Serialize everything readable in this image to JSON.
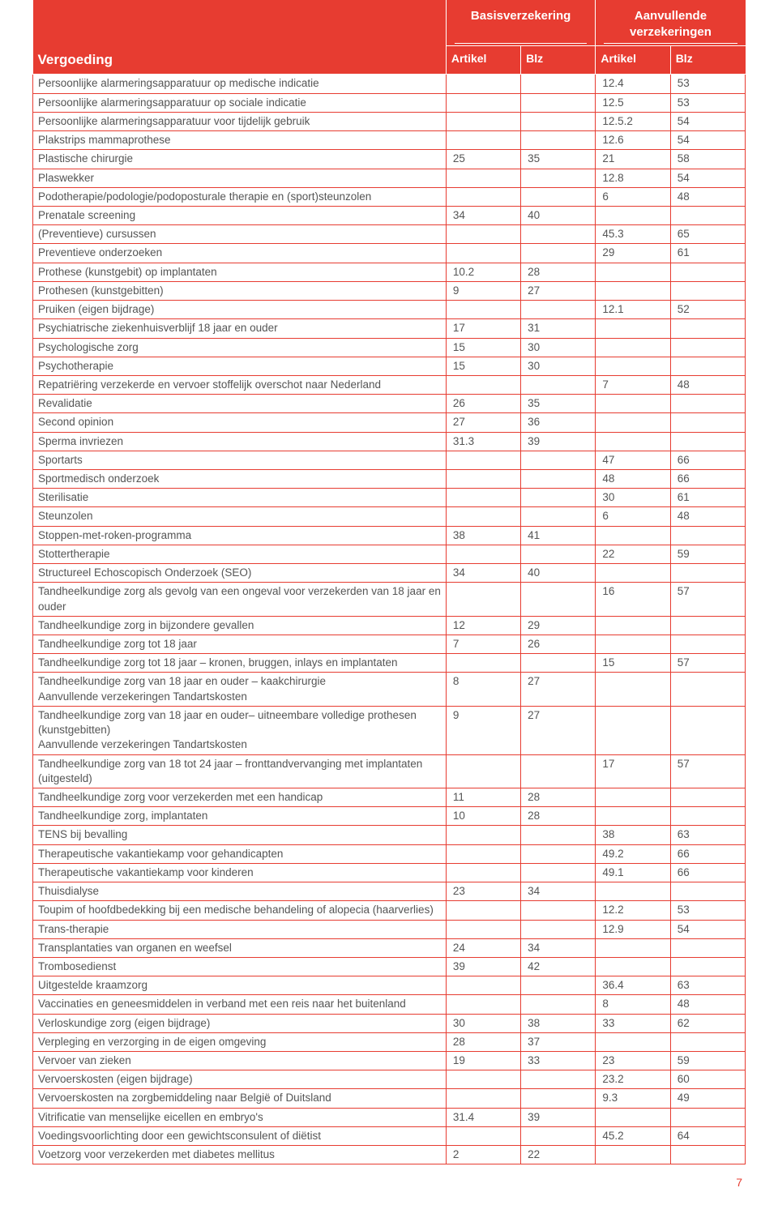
{
  "header": {
    "group1": "Basisverzekering",
    "group2": "Aanvullende verzekeringen",
    "vergoeding": "Vergoeding",
    "artikel": "Artikel",
    "blz": "Blz"
  },
  "page_number": "7",
  "colors": {
    "accent": "#e73c31",
    "text": "#555555",
    "header_text": "#ffffff",
    "background": "#ffffff"
  },
  "rows": [
    {
      "desc": "Persoonlijke alarmeringsapparatuur op medische indicatie",
      "a1": "",
      "b1": "",
      "a2": "12.4",
      "b2": "53"
    },
    {
      "desc": "Persoonlijke alarmeringsapparatuur op sociale indicatie",
      "a1": "",
      "b1": "",
      "a2": "12.5",
      "b2": "53"
    },
    {
      "desc": "Persoonlijke alarmeringsapparatuur voor tijdelijk gebruik",
      "a1": "",
      "b1": "",
      "a2": "12.5.2",
      "b2": "54"
    },
    {
      "desc": "Plakstrips mammaprothese",
      "a1": "",
      "b1": "",
      "a2": "12.6",
      "b2": "54"
    },
    {
      "desc": "Plastische chirurgie",
      "a1": "25",
      "b1": "35",
      "a2": "21",
      "b2": "58"
    },
    {
      "desc": "Plaswekker",
      "a1": "",
      "b1": "",
      "a2": "12.8",
      "b2": "54"
    },
    {
      "desc": "Podotherapie/podologie/podoposturale therapie en (sport)steunzolen",
      "a1": "",
      "b1": "",
      "a2": "6",
      "b2": "48"
    },
    {
      "desc": "Prenatale screening",
      "a1": "34",
      "b1": "40",
      "a2": "",
      "b2": ""
    },
    {
      "desc": "(Preventieve) cursussen",
      "a1": "",
      "b1": "",
      "a2": "45.3",
      "b2": "65"
    },
    {
      "desc": "Preventieve onderzoeken",
      "a1": "",
      "b1": "",
      "a2": "29",
      "b2": "61"
    },
    {
      "desc": "Prothese (kunstgebit) op implantaten",
      "a1": "10.2",
      "b1": "28",
      "a2": "",
      "b2": ""
    },
    {
      "desc": "Prothesen (kunstgebitten)",
      "a1": "9",
      "b1": "27",
      "a2": "",
      "b2": ""
    },
    {
      "desc": "Pruiken (eigen bijdrage)",
      "a1": "",
      "b1": "",
      "a2": "12.1",
      "b2": "52"
    },
    {
      "desc": "Psychiatrische ziekenhuisverblijf 18 jaar en ouder",
      "a1": "17",
      "b1": "31",
      "a2": "",
      "b2": ""
    },
    {
      "desc": "Psychologische zorg",
      "a1": "15",
      "b1": "30",
      "a2": "",
      "b2": ""
    },
    {
      "desc": "Psychotherapie",
      "a1": "15",
      "b1": "30",
      "a2": "",
      "b2": ""
    },
    {
      "desc": "Repatriëring verzekerde en vervoer stoffelijk overschot naar Nederland",
      "a1": "",
      "b1": "",
      "a2": "7",
      "b2": "48"
    },
    {
      "desc": "Revalidatie",
      "a1": "26",
      "b1": "35",
      "a2": "",
      "b2": ""
    },
    {
      "desc": "Second opinion",
      "a1": "27",
      "b1": "36",
      "a2": "",
      "b2": ""
    },
    {
      "desc": "Sperma invriezen",
      "a1": "31.3",
      "b1": "39",
      "a2": "",
      "b2": ""
    },
    {
      "desc": "Sportarts",
      "a1": "",
      "b1": "",
      "a2": "47",
      "b2": "66"
    },
    {
      "desc": "Sportmedisch onderzoek",
      "a1": "",
      "b1": "",
      "a2": "48",
      "b2": "66"
    },
    {
      "desc": "Sterilisatie",
      "a1": "",
      "b1": "",
      "a2": "30",
      "b2": "61"
    },
    {
      "desc": "Steunzolen",
      "a1": "",
      "b1": "",
      "a2": "6",
      "b2": "48"
    },
    {
      "desc": "Stoppen-met-roken-programma",
      "a1": "38",
      "b1": "41",
      "a2": "",
      "b2": ""
    },
    {
      "desc": "Stottertherapie",
      "a1": "",
      "b1": "",
      "a2": "22",
      "b2": "59"
    },
    {
      "desc": "Structureel Echoscopisch Onderzoek (SEO)",
      "a1": "34",
      "b1": "40",
      "a2": "",
      "b2": ""
    },
    {
      "desc": "Tandheelkundige zorg als gevolg van een ongeval voor verzekerden van 18 jaar en ouder",
      "a1": "",
      "b1": "",
      "a2": "16",
      "b2": "57"
    },
    {
      "desc": "Tandheelkundige zorg in bijzondere gevallen",
      "a1": "12",
      "b1": "29",
      "a2": "",
      "b2": ""
    },
    {
      "desc": "Tandheelkundige zorg tot 18 jaar",
      "a1": "7",
      "b1": "26",
      "a2": "",
      "b2": ""
    },
    {
      "desc": "Tandheelkundige zorg tot 18 jaar – kronen, bruggen, inlays en implantaten",
      "a1": "",
      "b1": "",
      "a2": "15",
      "b2": "57"
    },
    {
      "desc": "Tandheelkundige zorg van 18 jaar en ouder – kaakchirurgie\nAanvullende verzekeringen Tandartskosten",
      "a1": "8",
      "b1": "27",
      "a2": "",
      "b2": ""
    },
    {
      "desc": "Tandheelkundige zorg van 18  jaar en ouder– uitneembare volledige prothesen (kunstgebitten)\nAanvullende verzekeringen Tandartskosten",
      "a1": "9",
      "b1": "27",
      "a2": "",
      "b2": ""
    },
    {
      "desc": "Tandheelkundige zorg van 18  tot 24 jaar – fronttandvervanging met implantaten (uitgesteld)",
      "a1": "",
      "b1": "",
      "a2": "17",
      "b2": "57"
    },
    {
      "desc": "Tandheelkundige zorg voor verzekerden met een handicap",
      "a1": "11",
      "b1": "28",
      "a2": "",
      "b2": ""
    },
    {
      "desc": "Tandheelkundige zorg, implantaten",
      "a1": "10",
      "b1": "28",
      "a2": "",
      "b2": ""
    },
    {
      "desc": "TENS bij bevalling",
      "a1": "",
      "b1": "",
      "a2": "38",
      "b2": "63"
    },
    {
      "desc": "Therapeutische vakantiekamp voor gehandicapten",
      "a1": "",
      "b1": "",
      "a2": "49.2",
      "b2": "66"
    },
    {
      "desc": "Therapeutische vakantiekamp voor kinderen",
      "a1": "",
      "b1": "",
      "a2": "49.1",
      "b2": "66"
    },
    {
      "desc": "Thuisdialyse",
      "a1": "23",
      "b1": "34",
      "a2": "",
      "b2": ""
    },
    {
      "desc": "Toupim of hoofdbedekking bij een medische behandeling of alopecia (haarverlies)",
      "a1": "",
      "b1": "",
      "a2": "12.2",
      "b2": "53"
    },
    {
      "desc": "Trans-therapie",
      "a1": "",
      "b1": "",
      "a2": "12.9",
      "b2": "54"
    },
    {
      "desc": "Transplantaties van organen en weefsel",
      "a1": "24",
      "b1": "34",
      "a2": "",
      "b2": ""
    },
    {
      "desc": "Trombosedienst",
      "a1": "39",
      "b1": "42",
      "a2": "",
      "b2": ""
    },
    {
      "desc": "Uitgestelde kraamzorg",
      "a1": "",
      "b1": "",
      "a2": "36.4",
      "b2": "63"
    },
    {
      "desc": "Vaccinaties en geneesmiddelen in verband met een reis naar het buitenland",
      "a1": "",
      "b1": "",
      "a2": "8",
      "b2": "48"
    },
    {
      "desc": "Verloskundige zorg (eigen bijdrage)",
      "a1": "30",
      "b1": "38",
      "a2": "33",
      "b2": "62"
    },
    {
      "desc": "Verpleging en verzorging in de eigen omgeving",
      "a1": "28",
      "b1": "37",
      "a2": "",
      "b2": ""
    },
    {
      "desc": "Vervoer van zieken",
      "a1": "19",
      "b1": "33",
      "a2": "23",
      "b2": "59"
    },
    {
      "desc": "Vervoerskosten (eigen bijdrage)",
      "a1": "",
      "b1": "",
      "a2": "23.2",
      "b2": "60"
    },
    {
      "desc": "Vervoerskosten na zorgbemiddeling naar België of Duitsland",
      "a1": "",
      "b1": "",
      "a2": "9.3",
      "b2": "49"
    },
    {
      "desc": "Vitrificatie van menselijke eicellen en embryo's",
      "a1": "31.4",
      "b1": "39",
      "a2": "",
      "b2": ""
    },
    {
      "desc": "Voedingsvoorlichting door een gewichtsconsulent of diëtist",
      "a1": "",
      "b1": "",
      "a2": "45.2",
      "b2": "64"
    },
    {
      "desc": "Voetzorg voor verzekerden met diabetes mellitus",
      "a1": "2",
      "b1": "22",
      "a2": "",
      "b2": ""
    }
  ]
}
